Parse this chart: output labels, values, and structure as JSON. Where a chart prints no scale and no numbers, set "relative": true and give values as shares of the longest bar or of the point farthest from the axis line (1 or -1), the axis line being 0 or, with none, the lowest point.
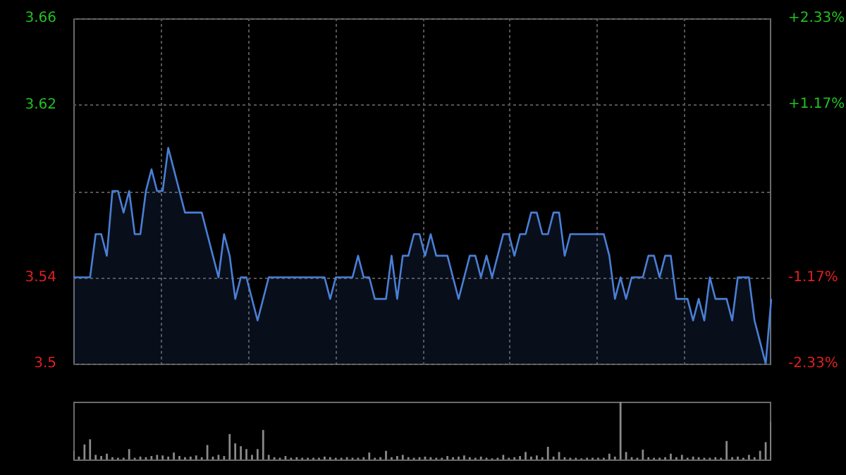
{
  "chart_data": [
    {
      "type": "area",
      "categories": [
        null,
        null,
        null,
        null,
        null,
        null,
        null,
        null,
        null,
        null,
        null,
        null,
        null,
        null,
        null,
        null,
        null,
        null,
        null,
        null,
        null,
        null,
        null,
        null,
        null,
        null,
        null,
        null,
        null,
        null,
        null,
        null,
        null,
        null,
        null,
        null,
        null,
        null,
        null,
        null,
        null,
        null,
        null,
        null,
        null,
        null,
        null,
        null,
        null,
        null,
        null,
        null,
        null,
        null,
        null,
        null,
        null,
        null,
        null,
        null,
        null,
        null,
        null,
        null,
        null,
        null,
        null,
        null,
        null,
        null,
        null,
        null,
        null,
        null,
        null,
        null,
        null,
        null,
        null,
        null,
        null,
        null,
        null,
        null,
        null,
        null,
        null,
        null,
        null,
        null,
        null,
        null,
        null,
        null,
        null,
        null,
        null,
        null,
        null,
        null,
        null,
        null,
        null,
        null,
        null,
        null,
        null,
        null,
        null,
        null,
        null,
        null,
        null,
        null,
        null,
        null,
        null,
        null,
        null,
        null,
        null,
        null,
        null,
        null,
        null,
        null
      ],
      "series": [
        {
          "color": "#4a7fd6",
          "values": [
            3.54,
            3.54,
            3.54,
            3.54,
            3.56,
            3.56,
            3.55,
            3.58,
            3.58,
            3.57,
            3.58,
            3.56,
            3.56,
            3.58,
            3.59,
            3.58,
            3.58,
            3.6,
            3.59,
            3.58,
            3.57,
            3.57,
            3.57,
            3.57,
            3.56,
            3.55,
            3.54,
            3.56,
            3.55,
            3.53,
            3.54,
            3.54,
            3.53,
            3.52,
            3.53,
            3.54,
            3.54,
            3.54,
            3.54,
            3.54,
            3.54,
            3.54,
            3.54,
            3.54,
            3.54,
            3.54,
            3.53,
            3.54,
            3.54,
            3.54,
            3.54,
            3.55,
            3.54,
            3.54,
            3.53,
            3.53,
            3.53,
            3.55,
            3.53,
            3.55,
            3.55,
            3.56,
            3.56,
            3.55,
            3.56,
            3.55,
            3.55,
            3.55,
            3.54,
            3.53,
            3.54,
            3.55,
            3.55,
            3.54,
            3.55,
            3.54,
            3.55,
            3.56,
            3.56,
            3.55,
            3.56,
            3.56,
            3.57,
            3.57,
            3.56,
            3.56,
            3.57,
            3.57,
            3.55,
            3.56,
            3.56,
            3.56,
            3.56,
            3.56,
            3.56,
            3.56,
            3.55,
            3.53,
            3.54,
            3.53,
            3.54,
            3.54,
            3.54,
            3.55,
            3.55,
            3.54,
            3.55,
            3.55,
            3.53,
            3.53,
            3.53,
            3.52,
            3.53,
            3.52,
            3.54,
            3.53,
            3.53,
            3.53,
            3.52,
            3.54,
            3.54,
            3.54,
            3.52,
            3.51,
            3.5,
            3.53
          ]
        }
      ],
      "ylim": [
        3.5,
        3.66
      ],
      "yticks": [
        3.5,
        3.54,
        {
          "value": 3.58,
          "label": null
        },
        3.62,
        3.66
      ],
      "y2lim": [
        -2.33,
        2.33
      ],
      "y2ticks": [
        {
          "value": -2.33,
          "label": "-2.33%"
        },
        {
          "value": -1.17,
          "label": "-1.17%"
        },
        {
          "value": 1.17,
          "label": "+1.17%"
        },
        {
          "value": 2.33,
          "label": "+2.33%"
        }
      ],
      "grid": true,
      "tick_labels": "y",
      "legend": false
    },
    {
      "type": "bar",
      "relative": true,
      "categories": [
        null,
        null,
        null,
        null,
        null,
        null,
        null,
        null,
        null,
        null,
        null,
        null,
        null,
        null,
        null,
        null,
        null,
        null,
        null,
        null,
        null,
        null,
        null,
        null,
        null,
        null,
        null,
        null,
        null,
        null,
        null,
        null,
        null,
        null,
        null,
        null,
        null,
        null,
        null,
        null,
        null,
        null,
        null,
        null,
        null,
        null,
        null,
        null,
        null,
        null,
        null,
        null,
        null,
        null,
        null,
        null,
        null,
        null,
        null,
        null,
        null,
        null,
        null,
        null,
        null,
        null,
        null,
        null,
        null,
        null,
        null,
        null,
        null,
        null,
        null,
        null,
        null,
        null,
        null,
        null,
        null,
        null,
        null,
        null,
        null,
        null,
        null,
        null,
        null,
        null,
        null,
        null,
        null,
        null,
        null,
        null,
        null,
        null,
        null,
        null,
        null,
        null,
        null,
        null,
        null,
        null,
        null,
        null,
        null,
        null,
        null,
        null,
        null,
        null,
        null,
        null,
        null,
        null,
        null,
        null,
        null,
        null,
        null,
        null,
        null,
        null
      ],
      "series": [
        {
          "color": "#8a8a8a",
          "values": [
            0.15,
            0.05,
            0.26,
            0.35,
            0.08,
            0.06,
            0.1,
            0.04,
            0.03,
            0.03,
            0.18,
            0.03,
            0.05,
            0.04,
            0.06,
            0.08,
            0.07,
            0.05,
            0.12,
            0.06,
            0.04,
            0.05,
            0.07,
            0.04,
            0.25,
            0.05,
            0.08,
            0.06,
            0.44,
            0.28,
            0.23,
            0.18,
            0.08,
            0.18,
            0.51,
            0.08,
            0.04,
            0.03,
            0.06,
            0.03,
            0.04,
            0.03,
            0.03,
            0.03,
            0.03,
            0.05,
            0.04,
            0.03,
            0.03,
            0.04,
            0.03,
            0.03,
            0.04,
            0.12,
            0.03,
            0.04,
            0.15,
            0.04,
            0.06,
            0.08,
            0.04,
            0.03,
            0.04,
            0.05,
            0.04,
            0.03,
            0.03,
            0.06,
            0.04,
            0.05,
            0.07,
            0.04,
            0.03,
            0.05,
            0.03,
            0.02,
            0.03,
            0.08,
            0.03,
            0.04,
            0.06,
            0.13,
            0.05,
            0.07,
            0.04,
            0.22,
            0.05,
            0.13,
            0.04,
            0.03,
            0.03,
            0.02,
            0.03,
            0.03,
            0.03,
            0.03,
            0.1,
            0.05,
            1,
            0.13,
            0.04,
            0.03,
            0.17,
            0.04,
            0.03,
            0.03,
            0.04,
            0.1,
            0.04,
            0.08,
            0.03,
            0.05,
            0.04,
            0.03,
            0.03,
            0.04,
            0.03,
            0.32,
            0.04,
            0.05,
            0.03,
            0.08,
            0.04,
            0.15,
            0.3,
            0.65
          ]
        }
      ],
      "tick_labels": false,
      "legend": false
    }
  ]
}
